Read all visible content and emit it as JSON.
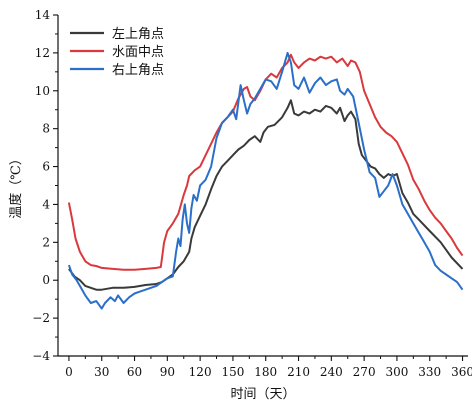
{
  "chart_data": {
    "type": "line",
    "xlabel": "时间（天）",
    "ylabel": "温度（℃）",
    "xlim": [
      -10,
      365
    ],
    "ylim": [
      -4,
      14
    ],
    "xticks": [
      0,
      30,
      60,
      90,
      120,
      150,
      180,
      210,
      240,
      270,
      300,
      330,
      360
    ],
    "yticks": [
      -4,
      -2,
      0,
      2,
      4,
      6,
      8,
      10,
      12,
      14
    ],
    "legend_position": "top-left",
    "grid": false,
    "series": [
      {
        "name": "左上角点",
        "color": "#3a3a3a",
        "points": [
          [
            0,
            0.6
          ],
          [
            5,
            0.2
          ],
          [
            10,
            0
          ],
          [
            15,
            -0.3
          ],
          [
            20,
            -0.4
          ],
          [
            25,
            -0.5
          ],
          [
            30,
            -0.5
          ],
          [
            40,
            -0.4
          ],
          [
            50,
            -0.4
          ],
          [
            60,
            -0.35
          ],
          [
            70,
            -0.25
          ],
          [
            80,
            -0.2
          ],
          [
            85,
            -0.1
          ],
          [
            90,
            0.1
          ],
          [
            95,
            0.3
          ],
          [
            100,
            0.7
          ],
          [
            105,
            1.0
          ],
          [
            110,
            1.5
          ],
          [
            112,
            2.2
          ],
          [
            115,
            2.8
          ],
          [
            120,
            3.4
          ],
          [
            125,
            4.0
          ],
          [
            130,
            4.8
          ],
          [
            135,
            5.5
          ],
          [
            140,
            6.0
          ],
          [
            145,
            6.3
          ],
          [
            150,
            6.6
          ],
          [
            155,
            6.9
          ],
          [
            160,
            7.1
          ],
          [
            165,
            7.4
          ],
          [
            170,
            7.6
          ],
          [
            175,
            7.3
          ],
          [
            178,
            7.8
          ],
          [
            182,
            8.1
          ],
          [
            188,
            8.2
          ],
          [
            195,
            8.6
          ],
          [
            200,
            9.1
          ],
          [
            203,
            9.5
          ],
          [
            206,
            8.8
          ],
          [
            210,
            8.7
          ],
          [
            215,
            8.9
          ],
          [
            220,
            8.8
          ],
          [
            225,
            9.0
          ],
          [
            230,
            8.9
          ],
          [
            235,
            9.2
          ],
          [
            240,
            9.1
          ],
          [
            245,
            8.8
          ],
          [
            248,
            9.1
          ],
          [
            252,
            8.4
          ],
          [
            255,
            8.7
          ],
          [
            258,
            8.9
          ],
          [
            262,
            8.5
          ],
          [
            265,
            7.2
          ],
          [
            268,
            6.6
          ],
          [
            272,
            6.3
          ],
          [
            276,
            6.0
          ],
          [
            280,
            5.9
          ],
          [
            284,
            5.6
          ],
          [
            288,
            5.4
          ],
          [
            292,
            5.6
          ],
          [
            296,
            5.5
          ],
          [
            300,
            5.6
          ],
          [
            305,
            4.6
          ],
          [
            310,
            4.1
          ],
          [
            315,
            3.5
          ],
          [
            320,
            3.2
          ],
          [
            330,
            2.6
          ],
          [
            340,
            2.0
          ],
          [
            350,
            1.2
          ],
          [
            360,
            0.6
          ]
        ]
      },
      {
        "name": "水面中点",
        "color": "#d9393d",
        "points": [
          [
            0,
            4.1
          ],
          [
            3,
            3.2
          ],
          [
            6,
            2.2
          ],
          [
            10,
            1.5
          ],
          [
            15,
            1.0
          ],
          [
            20,
            0.8
          ],
          [
            25,
            0.75
          ],
          [
            30,
            0.65
          ],
          [
            40,
            0.6
          ],
          [
            50,
            0.55
          ],
          [
            60,
            0.55
          ],
          [
            70,
            0.6
          ],
          [
            80,
            0.65
          ],
          [
            84,
            0.7
          ],
          [
            87,
            2.0
          ],
          [
            90,
            2.6
          ],
          [
            95,
            3.0
          ],
          [
            100,
            3.5
          ],
          [
            105,
            4.5
          ],
          [
            108,
            5.0
          ],
          [
            110,
            5.5
          ],
          [
            115,
            5.8
          ],
          [
            120,
            6.0
          ],
          [
            125,
            6.6
          ],
          [
            130,
            7.2
          ],
          [
            135,
            7.8
          ],
          [
            140,
            8.3
          ],
          [
            145,
            8.6
          ],
          [
            150,
            8.9
          ],
          [
            155,
            9.6
          ],
          [
            160,
            10.1
          ],
          [
            163,
            10.2
          ],
          [
            166,
            9.7
          ],
          [
            170,
            9.5
          ],
          [
            175,
            10.0
          ],
          [
            180,
            10.6
          ],
          [
            185,
            10.9
          ],
          [
            190,
            10.7
          ],
          [
            195,
            11.2
          ],
          [
            200,
            11.5
          ],
          [
            203,
            11.9
          ],
          [
            206,
            11.5
          ],
          [
            210,
            11.2
          ],
          [
            215,
            11.5
          ],
          [
            220,
            11.7
          ],
          [
            225,
            11.6
          ],
          [
            230,
            11.8
          ],
          [
            235,
            11.7
          ],
          [
            240,
            11.8
          ],
          [
            245,
            11.5
          ],
          [
            250,
            11.7
          ],
          [
            255,
            11.3
          ],
          [
            258,
            11.6
          ],
          [
            262,
            11.5
          ],
          [
            266,
            11.0
          ],
          [
            270,
            10.0
          ],
          [
            275,
            9.3
          ],
          [
            280,
            8.6
          ],
          [
            285,
            8.1
          ],
          [
            290,
            7.8
          ],
          [
            295,
            7.6
          ],
          [
            300,
            7.3
          ],
          [
            305,
            6.7
          ],
          [
            310,
            6.1
          ],
          [
            315,
            5.3
          ],
          [
            320,
            4.8
          ],
          [
            325,
            4.2
          ],
          [
            330,
            3.7
          ],
          [
            335,
            3.3
          ],
          [
            340,
            3.0
          ],
          [
            345,
            2.6
          ],
          [
            350,
            2.2
          ],
          [
            355,
            1.7
          ],
          [
            360,
            1.3
          ]
        ]
      },
      {
        "name": "右上角点",
        "color": "#2a6fc9",
        "points": [
          [
            0,
            0.8
          ],
          [
            3,
            0.3
          ],
          [
            7,
            0
          ],
          [
            10,
            -0.3
          ],
          [
            15,
            -0.8
          ],
          [
            20,
            -1.2
          ],
          [
            25,
            -1.1
          ],
          [
            30,
            -1.5
          ],
          [
            33,
            -1.2
          ],
          [
            38,
            -0.9
          ],
          [
            42,
            -1.1
          ],
          [
            45,
            -0.8
          ],
          [
            50,
            -1.2
          ],
          [
            55,
            -0.9
          ],
          [
            60,
            -0.7
          ],
          [
            65,
            -0.6
          ],
          [
            70,
            -0.5
          ],
          [
            75,
            -0.4
          ],
          [
            80,
            -0.3
          ],
          [
            85,
            -0.1
          ],
          [
            90,
            0.1
          ],
          [
            95,
            0.2
          ],
          [
            98,
            1.5
          ],
          [
            100,
            2.2
          ],
          [
            102,
            1.8
          ],
          [
            104,
            3.2
          ],
          [
            106,
            4.0
          ],
          [
            108,
            3.0
          ],
          [
            110,
            2.5
          ],
          [
            112,
            3.8
          ],
          [
            114,
            4.5
          ],
          [
            117,
            4.2
          ],
          [
            120,
            5.0
          ],
          [
            125,
            5.3
          ],
          [
            130,
            6.0
          ],
          [
            135,
            7.5
          ],
          [
            140,
            8.3
          ],
          [
            145,
            8.6
          ],
          [
            150,
            9.0
          ],
          [
            153,
            8.5
          ],
          [
            157,
            10.3
          ],
          [
            160,
            9.5
          ],
          [
            163,
            8.8
          ],
          [
            166,
            9.3
          ],
          [
            170,
            9.6
          ],
          [
            175,
            10.1
          ],
          [
            180,
            10.6
          ],
          [
            185,
            10.5
          ],
          [
            190,
            10.1
          ],
          [
            195,
            11.0
          ],
          [
            200,
            12.0
          ],
          [
            203,
            11.5
          ],
          [
            206,
            10.3
          ],
          [
            210,
            10.1
          ],
          [
            215,
            10.7
          ],
          [
            220,
            9.9
          ],
          [
            225,
            10.4
          ],
          [
            230,
            10.7
          ],
          [
            235,
            10.3
          ],
          [
            240,
            10.5
          ],
          [
            245,
            10.6
          ],
          [
            248,
            10.0
          ],
          [
            252,
            9.8
          ],
          [
            255,
            10.1
          ],
          [
            260,
            9.7
          ],
          [
            265,
            8.3
          ],
          [
            270,
            6.9
          ],
          [
            275,
            5.7
          ],
          [
            280,
            5.4
          ],
          [
            284,
            4.4
          ],
          [
            288,
            4.7
          ],
          [
            292,
            5.0
          ],
          [
            296,
            5.6
          ],
          [
            300,
            5.0
          ],
          [
            305,
            4.0
          ],
          [
            310,
            3.5
          ],
          [
            315,
            3.0
          ],
          [
            320,
            2.5
          ],
          [
            325,
            2.0
          ],
          [
            330,
            1.5
          ],
          [
            335,
            0.8
          ],
          [
            340,
            0.5
          ],
          [
            345,
            0.3
          ],
          [
            350,
            0.1
          ],
          [
            355,
            -0.1
          ],
          [
            360,
            -0.5
          ]
        ]
      }
    ]
  }
}
